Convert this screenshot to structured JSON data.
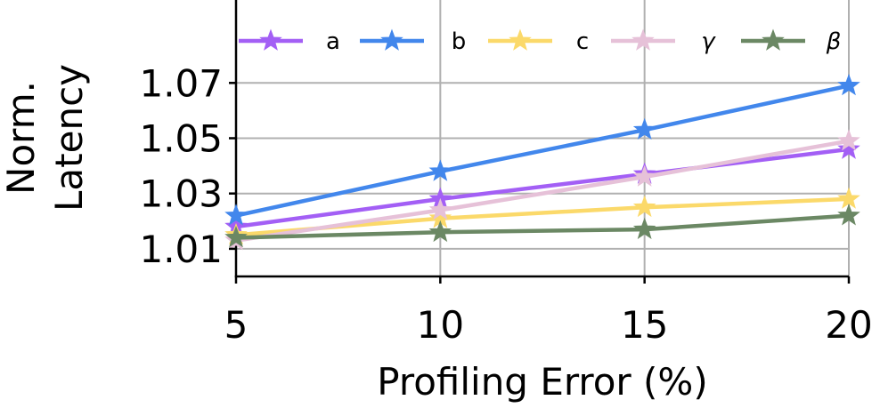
{
  "chart_data": {
    "type": "line",
    "xlabel": "Profiling Error (%)",
    "ylabel": [
      "Norm.",
      "Latency"
    ],
    "x": [
      5,
      10,
      15,
      20
    ],
    "xlim": [
      5,
      20
    ],
    "ylim": [
      1.0,
      1.1
    ],
    "xticks": [
      5,
      10,
      15,
      20
    ],
    "yticks": [
      1.01,
      1.03,
      1.05,
      1.07
    ],
    "xtick_labels": [
      "5",
      "10",
      "15",
      "20"
    ],
    "ytick_labels": [
      "1.01",
      "1.03",
      "1.05",
      "1.07"
    ],
    "grid": true,
    "legend_position": "top",
    "marker": "star",
    "series": [
      {
        "name": "a",
        "label": "a",
        "color": "#a35ff5",
        "values": [
          1.018,
          1.028,
          1.037,
          1.046
        ]
      },
      {
        "name": "b",
        "label": "b",
        "color": "#4287ec",
        "values": [
          1.022,
          1.038,
          1.053,
          1.069
        ]
      },
      {
        "name": "c",
        "label": "c",
        "color": "#fbd96a",
        "values": [
          1.015,
          1.021,
          1.025,
          1.028
        ]
      },
      {
        "name": "gamma",
        "label": "γ",
        "color": "#e6c1d8",
        "values": [
          1.013,
          1.024,
          1.036,
          1.049
        ]
      },
      {
        "name": "beta",
        "label": "β",
        "color": "#6b8864",
        "values": [
          1.014,
          1.016,
          1.017,
          1.022
        ]
      }
    ]
  }
}
